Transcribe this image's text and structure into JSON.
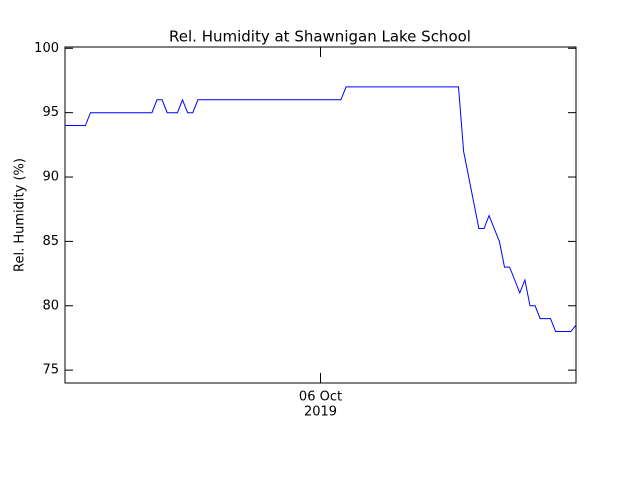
{
  "chart_data": {
    "type": "line",
    "title": "Rel. Humidity at Shawnigan Lake School",
    "ylabel": "Rel. Humidity (%)",
    "categories": [
      null,
      null,
      null,
      null,
      null,
      null,
      null,
      null,
      null,
      null,
      null,
      null,
      null,
      null,
      null,
      null,
      null,
      null,
      null,
      null,
      null,
      null,
      null,
      null,
      null,
      null,
      null,
      null,
      null,
      null,
      null,
      null,
      null,
      null,
      null,
      null,
      null,
      null,
      null,
      null,
      null,
      null,
      null,
      null,
      null,
      null,
      null,
      null,
      null,
      null,
      "06 Oct",
      null,
      null,
      null,
      null,
      null,
      null,
      null,
      null,
      null,
      null,
      null,
      null,
      null,
      null,
      null,
      null,
      null,
      null,
      null,
      null,
      null,
      null,
      null,
      null,
      null,
      null,
      null,
      null,
      null,
      null,
      null,
      null,
      null,
      null,
      null,
      null,
      null,
      null,
      null,
      null,
      null,
      null,
      null,
      null,
      null,
      null,
      null,
      null,
      null,
      null
    ],
    "x_tick_year": "2019",
    "series": [
      {
        "color": "#0000ff",
        "values": [
          94,
          94,
          94,
          94,
          94,
          95,
          95,
          95,
          95,
          95,
          95,
          95,
          95,
          95,
          95,
          95,
          95,
          95,
          96,
          96,
          95,
          95,
          95,
          96,
          95,
          95,
          96,
          96,
          96,
          96,
          96,
          96,
          96,
          96,
          96,
          96,
          96,
          96,
          96,
          96,
          96,
          96,
          96,
          96,
          96,
          96,
          96,
          96,
          96,
          96,
          96,
          96,
          96,
          96,
          96,
          97,
          97,
          97,
          97,
          97,
          97,
          97,
          97,
          97,
          97,
          97,
          97,
          97,
          97,
          97,
          97,
          97,
          97,
          97,
          97,
          97,
          97,
          97,
          92,
          90,
          88,
          86,
          86,
          87,
          86,
          85,
          83,
          83,
          82,
          81,
          82,
          80,
          80,
          79,
          79,
          79,
          78,
          78,
          78,
          78,
          78.5
        ]
      }
    ],
    "ylim": [
      74,
      100.1
    ],
    "yticks": [
      75,
      80,
      85,
      90,
      95,
      100
    ]
  }
}
